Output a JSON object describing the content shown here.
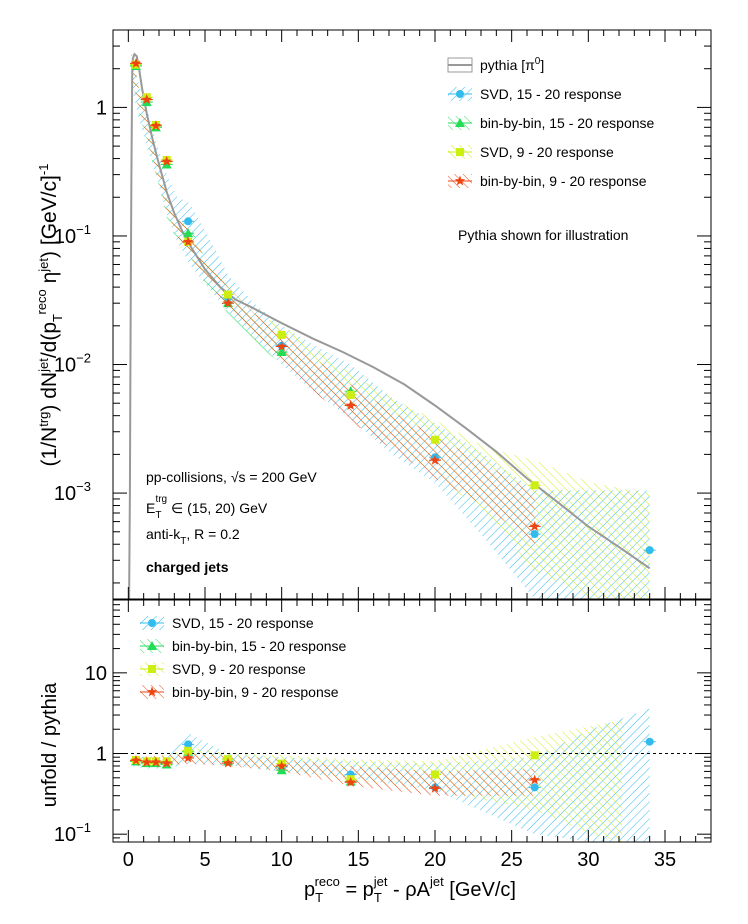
{
  "chart_data": [
    {
      "type": "scatter",
      "panel": "top",
      "ylabel": "(1/N^trg) dN^jet/d(p_T^reco η^jet) [GeV/c]^-1",
      "ylabel_parts": {
        "a": "(1/N",
        "b": "trg",
        "c": ") dN",
        "d": "jet",
        "e": "/d(p",
        "f": "T",
        "g": "reco",
        "h": " η",
        "i": "jet",
        "j": ") [GeV/c]",
        "k": "-1"
      },
      "yscale": "log",
      "xlim": [
        -1,
        38
      ],
      "ylim": [
        0.00015,
        4
      ],
      "yticks": [
        {
          "v": 1,
          "m": "1",
          "e": ""
        },
        {
          "v": 0.1,
          "m": "10",
          "e": "−1"
        },
        {
          "v": 0.01,
          "m": "10",
          "e": "−2"
        },
        {
          "v": 0.001,
          "m": "10",
          "e": "−3"
        }
      ],
      "legend": [
        {
          "label": "pythia [π⁰]",
          "label_parts": {
            "main": "pythia [π",
            "sup": "0",
            "end": "]"
          },
          "color": "#999999"
        },
        {
          "label": "SVD, 15 - 20 response",
          "color": "#33bbee"
        },
        {
          "label": "bin-by-bin, 15 - 20 response",
          "color": "#22dd55"
        },
        {
          "label": "SVD, 9 - 20 response",
          "color": "#ccee11"
        },
        {
          "label": "bin-by-bin, 9 - 20 response",
          "color": "#ee4411"
        }
      ],
      "annotation": "Pythia shown for illustration",
      "annotation_color": "#2222dd",
      "info": {
        "line1": {
          "a": "pp-collisions, ",
          "b": "√s",
          "c": " = 200 GeV"
        },
        "line2": {
          "a": "E",
          "sub": "T",
          "sup": "trg",
          "b": " ∈ (15, 20) GeV"
        },
        "line3": {
          "a": "anti-k",
          "sub": "T",
          "b": ", R = 0.2"
        },
        "line4": "charged jets"
      },
      "pythia": {
        "x": [
          0.05,
          0.1,
          0.15,
          0.2,
          0.25,
          0.3,
          0.4,
          0.55,
          0.7,
          0.9,
          1.2,
          1.6,
          2.0,
          2.5,
          3.0,
          3.5,
          4.0,
          5.0,
          6.0,
          7.0,
          8.0,
          10.0,
          12.0,
          14.0,
          16.0,
          18.0,
          20.0,
          22.0,
          24.0,
          26.0,
          28.0,
          30.0,
          32.0,
          34.0
        ],
        "y": [
          0.00015,
          0.001,
          0.02,
          0.3,
          1.8,
          2.4,
          2.6,
          2.5,
          2.0,
          1.4,
          0.9,
          0.55,
          0.36,
          0.22,
          0.15,
          0.11,
          0.085,
          0.055,
          0.04,
          0.032,
          0.028,
          0.021,
          0.016,
          0.0125,
          0.0095,
          0.007,
          0.0048,
          0.0032,
          0.0021,
          0.0013,
          0.00085,
          0.00055,
          0.00038,
          0.00026
        ]
      },
      "bands": [
        {
          "name": "SVD, 15 - 20 response",
          "color": "#33bbee",
          "x": [
            0.2,
            0.7,
            1.2,
            1.8,
            2.5,
            3.2,
            4.0,
            5.2,
            6.5,
            8.2,
            10.0,
            12.2,
            14.5,
            17.2,
            20.0,
            23.2,
            26.5,
            30.2,
            34.0
          ],
          "lo": [
            1.5,
            0.8,
            0.5,
            0.3,
            0.15,
            0.09,
            0.06,
            0.04,
            0.026,
            0.016,
            0.01,
            0.006,
            0.0038,
            0.002,
            0.0012,
            0.00045,
            0.00015,
            0.00015,
            0.00015
          ],
          "hi": [
            2.7,
            1.5,
            1.0,
            0.55,
            0.3,
            0.2,
            0.18,
            0.1,
            0.05,
            0.03,
            0.02,
            0.014,
            0.01,
            0.0055,
            0.0035,
            0.002,
            0.00105,
            0.00105,
            0.00105
          ]
        },
        {
          "name": "bin-by-bin, 15 - 20 response",
          "color": "#22dd55",
          "x": [
            0.2,
            0.7,
            1.2,
            1.8,
            2.5,
            3.2,
            4.0,
            5.2,
            6.5,
            8.2,
            10.0
          ],
          "lo": [
            1.7,
            0.9,
            0.55,
            0.3,
            0.14,
            0.09,
            0.07,
            0.04,
            0.025,
            0.015,
            0.01
          ],
          "hi": [
            2.7,
            1.4,
            0.9,
            0.45,
            0.22,
            0.14,
            0.12,
            0.06,
            0.04,
            0.022,
            0.015
          ]
        },
        {
          "name": "SVD, 9 - 20 response",
          "color": "#ccee11",
          "x": [
            0.2,
            0.7,
            1.2,
            1.8,
            2.5,
            3.2,
            4.0,
            5.2,
            6.5,
            8.2,
            10.0,
            12.2,
            14.5,
            17.2,
            20.0,
            23.2,
            26.5,
            30.2,
            34.0
          ],
          "lo": [
            1.8,
            1.0,
            0.6,
            0.32,
            0.16,
            0.1,
            0.07,
            0.045,
            0.028,
            0.017,
            0.011,
            0.007,
            0.004,
            0.0024,
            0.0014,
            0.0007,
            0.00025,
            0.00015,
            0.00015
          ],
          "hi": [
            2.6,
            1.4,
            0.85,
            0.45,
            0.22,
            0.14,
            0.11,
            0.06,
            0.04,
            0.025,
            0.02,
            0.013,
            0.0085,
            0.0055,
            0.0037,
            0.0023,
            0.0018,
            0.0012,
            0.001
          ]
        },
        {
          "name": "bin-by-bin, 9 - 20 response",
          "color": "#ee4411",
          "x": [
            0.2,
            0.7,
            1.2,
            1.8,
            2.5,
            3.2,
            4.0,
            5.2,
            6.5,
            8.2,
            10.0,
            12.2,
            14.5,
            17.2,
            20.0,
            23.2,
            26.5
          ],
          "lo": [
            1.8,
            1.0,
            0.6,
            0.32,
            0.16,
            0.1,
            0.07,
            0.045,
            0.027,
            0.016,
            0.01,
            0.006,
            0.0036,
            0.0022,
            0.0013,
            0.0008,
            0.0004
          ],
          "hi": [
            2.6,
            1.4,
            0.85,
            0.45,
            0.22,
            0.14,
            0.11,
            0.06,
            0.04,
            0.025,
            0.018,
            0.011,
            0.007,
            0.0043,
            0.0028,
            0.0017,
            0.001
          ]
        }
      ],
      "series": [
        {
          "name": "SVD, 15 - 20 response",
          "marker": "circle",
          "color": "#33bbee",
          "x": [
            0.5,
            1.2,
            1.8,
            2.5,
            3.9,
            6.5,
            10.0,
            14.5,
            20.0,
            26.5,
            34.0
          ],
          "y": [
            2.15,
            1.15,
            0.72,
            0.38,
            0.13,
            0.033,
            0.014,
            0.0058,
            0.0019,
            0.00048,
            0.00036
          ]
        },
        {
          "name": "bin-by-bin, 15 - 20 response",
          "marker": "triangle",
          "color": "#22dd55",
          "x": [
            0.5,
            1.2,
            1.8,
            2.5,
            3.9,
            6.5,
            10.0,
            14.5
          ],
          "y": [
            2.1,
            1.1,
            0.7,
            0.36,
            0.105,
            0.03,
            0.0125,
            0.0062
          ]
        },
        {
          "name": "SVD, 9 - 20 response",
          "marker": "square",
          "color": "#ccee11",
          "x": [
            0.5,
            1.2,
            1.8,
            2.5,
            3.9,
            6.5,
            10.0,
            14.5,
            20.0,
            26.5
          ],
          "y": [
            2.15,
            1.2,
            0.73,
            0.39,
            0.09,
            0.035,
            0.017,
            0.0058,
            0.0026,
            0.00115
          ]
        },
        {
          "name": "bin-by-bin, 9 - 20 response",
          "marker": "star",
          "color": "#ee4411",
          "x": [
            0.5,
            1.2,
            1.8,
            2.5,
            3.9,
            6.5,
            10.0,
            14.5,
            20.0,
            26.5
          ],
          "y": [
            2.2,
            1.15,
            0.72,
            0.38,
            0.09,
            0.03,
            0.0138,
            0.0048,
            0.0018,
            0.00055
          ]
        }
      ]
    },
    {
      "type": "scatter",
      "panel": "bottom",
      "ylabel": "unfold / pythia",
      "xlabel": {
        "a": "p",
        "a_sub": "T",
        "a_sup": "reco",
        "b": " = p",
        "b_sub": "T",
        "b_sup": "jet",
        "c": " - ρA",
        "c_sup": "jet",
        "d": " [GeV/c]"
      },
      "yscale": "log",
      "xlim": [
        -1,
        38
      ],
      "ylim": [
        0.08,
        80
      ],
      "xticks": [
        "0",
        "5",
        "10",
        "15",
        "20",
        "25",
        "30",
        "35"
      ],
      "yticks": [
        {
          "v": 10,
          "m": "10",
          "e": ""
        },
        {
          "v": 1,
          "m": "1",
          "e": ""
        },
        {
          "v": 0.1,
          "m": "10",
          "e": "−1"
        }
      ],
      "reference_line": 1,
      "legend": [
        {
          "label": "SVD, 15 - 20 response",
          "color": "#33bbee"
        },
        {
          "label": "bin-by-bin, 15 - 20 response",
          "color": "#22dd55"
        },
        {
          "label": "SVD, 9 - 20 response",
          "color": "#ccee11"
        },
        {
          "label": "bin-by-bin, 9 - 20 response",
          "color": "#ee4411"
        }
      ],
      "bands": [
        {
          "name": "SVD, 15 - 20 response",
          "color": "#33bbee",
          "x": [
            0.2,
            1.2,
            2.5,
            3.9,
            6.5,
            10.0,
            14.5,
            20.0,
            26.5,
            30.2,
            34.0
          ],
          "lo": [
            0.7,
            0.65,
            0.65,
            0.75,
            0.72,
            0.6,
            0.5,
            0.35,
            0.1,
            0.08,
            0.08
          ],
          "hi": [
            0.9,
            0.92,
            0.9,
            1.8,
            1.0,
            0.9,
            0.8,
            0.75,
            0.9,
            2.0,
            3.6
          ]
        },
        {
          "name": "SVD, 9 - 20 response",
          "color": "#ccee11",
          "x": [
            0.2,
            2.5,
            3.9,
            6.5,
            10.0,
            14.5,
            20.0,
            26.5,
            30.2,
            32.2
          ],
          "lo": [
            0.7,
            0.7,
            0.8,
            0.75,
            0.6,
            0.45,
            0.35,
            0.2,
            0.1,
            0.08
          ],
          "hi": [
            0.9,
            0.95,
            1.2,
            1.0,
            0.95,
            0.85,
            0.8,
            1.6,
            2.2,
            2.6
          ]
        },
        {
          "name": "bin-by-bin, 9 - 20 response",
          "color": "#ee4411",
          "x": [
            0.2,
            2.5,
            3.9,
            6.5,
            10.0,
            14.5,
            20.0,
            26.5
          ],
          "lo": [
            0.7,
            0.7,
            0.75,
            0.7,
            0.6,
            0.4,
            0.3,
            0.3
          ],
          "hi": [
            0.9,
            0.95,
            1.0,
            0.95,
            0.85,
            0.7,
            0.6,
            0.65
          ]
        }
      ],
      "series": [
        {
          "name": "SVD, 15 - 20 response",
          "marker": "circle",
          "color": "#33bbee",
          "x": [
            0.5,
            1.2,
            1.8,
            2.5,
            3.9,
            6.5,
            10.0,
            14.5,
            20.0,
            26.5,
            34.0
          ],
          "y": [
            0.82,
            0.8,
            0.78,
            0.78,
            1.3,
            0.85,
            0.68,
            0.55,
            0.38,
            0.38,
            1.4
          ]
        },
        {
          "name": "bin-by-bin, 15 - 20 response",
          "marker": "triangle",
          "color": "#22dd55",
          "x": [
            0.5,
            1.2,
            1.8,
            2.5,
            3.9,
            6.5,
            10.0,
            14.5
          ],
          "y": [
            0.8,
            0.76,
            0.76,
            0.73,
            1.05,
            0.8,
            0.62,
            0.45
          ]
        },
        {
          "name": "SVD, 9 - 20 response",
          "marker": "square",
          "color": "#ccee11",
          "x": [
            0.5,
            1.2,
            1.8,
            2.5,
            3.9,
            6.5,
            10.0,
            14.5,
            20.0,
            26.5
          ],
          "y": [
            0.83,
            0.8,
            0.8,
            0.8,
            1.08,
            0.85,
            0.75,
            0.48,
            0.55,
            0.95
          ]
        },
        {
          "name": "bin-by-bin, 9 - 20 response",
          "marker": "star",
          "color": "#ee4411",
          "x": [
            0.5,
            1.2,
            1.8,
            2.5,
            3.9,
            6.5,
            10.0,
            14.5,
            20.0,
            26.5
          ],
          "y": [
            0.82,
            0.78,
            0.78,
            0.76,
            0.88,
            0.76,
            0.7,
            0.44,
            0.37,
            0.47
          ]
        }
      ]
    }
  ]
}
